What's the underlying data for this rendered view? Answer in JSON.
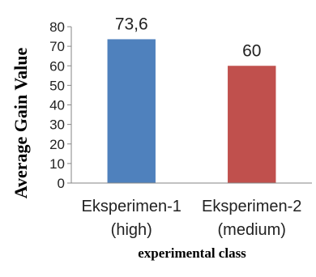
{
  "chart_data": {
    "type": "bar",
    "categories": [
      [
        "Eksperimen-1",
        "(high)"
      ],
      [
        "Eksperimen-2",
        "(medium)"
      ]
    ],
    "values": [
      73.6,
      60
    ],
    "data_labels": [
      "73,6",
      "60"
    ],
    "colors": [
      "#4f81bd",
      "#c0504d"
    ],
    "xlabel": "experimental  class",
    "ylabel": "Average Gain Value",
    "ylim": [
      0,
      80
    ],
    "yticks": [
      0,
      10,
      20,
      30,
      40,
      50,
      60,
      70,
      80
    ],
    "grid": false,
    "legend": "none"
  }
}
